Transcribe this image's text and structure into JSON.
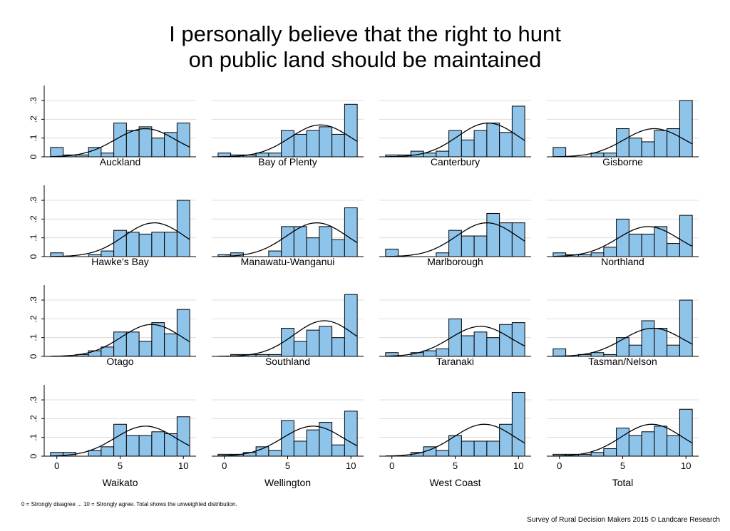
{
  "title": {
    "line1": "I personally believe that the right to hunt",
    "line2": "on public land should be maintained"
  },
  "footnote": "0 = Strongly disagree ... 10 = Strongly agree. Total shows the unweighted distribution.",
  "credit": "Survey of Rural Decision Makers 2015 © Landcare Research",
  "colors": {
    "bar_fill": "#8ec3ea",
    "bar_stroke": "#000000",
    "curve": "#000000",
    "grid": "#dcdcdc"
  },
  "chart_data": {
    "type": "bar",
    "layout": "4x4 small multiples, histogram with fitted normal curve per panel",
    "categories": [
      0,
      1,
      2,
      3,
      4,
      5,
      6,
      7,
      8,
      9,
      10
    ],
    "xlim": [
      -1,
      11
    ],
    "ylim": [
      0,
      0.38
    ],
    "x_ticks": [
      "0",
      "5",
      "10"
    ],
    "y_ticks": [
      "0",
      ".1",
      ".2",
      ".3"
    ],
    "grid": "horizontal",
    "panels": [
      {
        "label": "Auckland",
        "values": [
          0.05,
          0.01,
          0.01,
          0.05,
          0.02,
          0.18,
          0.14,
          0.16,
          0.1,
          0.13,
          0.18
        ],
        "fit": {
          "mean": 7.0,
          "peak": 0.15
        }
      },
      {
        "label": "Bay of Plenty",
        "values": [
          0.02,
          0.01,
          0.01,
          0.02,
          0.02,
          0.14,
          0.12,
          0.14,
          0.16,
          0.12,
          0.28
        ],
        "fit": {
          "mean": 7.6,
          "peak": 0.17
        }
      },
      {
        "label": "Canterbury",
        "values": [
          0.01,
          0.01,
          0.03,
          0.02,
          0.03,
          0.14,
          0.09,
          0.14,
          0.18,
          0.13,
          0.27
        ],
        "fit": {
          "mean": 7.6,
          "peak": 0.18
        }
      },
      {
        "label": "Gisborne",
        "values": [
          0.05,
          0.0,
          0.0,
          0.02,
          0.02,
          0.15,
          0.1,
          0.08,
          0.14,
          0.15,
          0.3
        ],
        "fit": {
          "mean": 7.5,
          "peak": 0.15
        }
      },
      {
        "label": "Hawke's Bay",
        "values": [
          0.02,
          0.0,
          0.0,
          0.01,
          0.03,
          0.14,
          0.13,
          0.12,
          0.13,
          0.13,
          0.3
        ],
        "fit": {
          "mean": 7.7,
          "peak": 0.18
        }
      },
      {
        "label": "Manawatu-Wanganui",
        "values": [
          0.01,
          0.02,
          0.0,
          0.0,
          0.03,
          0.16,
          0.16,
          0.1,
          0.16,
          0.09,
          0.26
        ],
        "fit": {
          "mean": 7.3,
          "peak": 0.18
        }
      },
      {
        "label": "Marlborough",
        "values": [
          0.04,
          0.0,
          0.0,
          0.0,
          0.02,
          0.14,
          0.11,
          0.11,
          0.23,
          0.18,
          0.18
        ],
        "fit": {
          "mean": 7.5,
          "peak": 0.18
        }
      },
      {
        "label": "Northland",
        "values": [
          0.02,
          0.01,
          0.01,
          0.02,
          0.05,
          0.2,
          0.12,
          0.12,
          0.16,
          0.07,
          0.22
        ],
        "fit": {
          "mean": 7.0,
          "peak": 0.16
        }
      },
      {
        "label": "Otago",
        "values": [
          0.0,
          0.0,
          0.01,
          0.03,
          0.05,
          0.13,
          0.13,
          0.08,
          0.18,
          0.12,
          0.25
        ],
        "fit": {
          "mean": 7.5,
          "peak": 0.17
        }
      },
      {
        "label": "Southland",
        "values": [
          0.0,
          0.01,
          0.01,
          0.01,
          0.01,
          0.15,
          0.08,
          0.14,
          0.16,
          0.1,
          0.33
        ],
        "fit": {
          "mean": 7.9,
          "peak": 0.19
        }
      },
      {
        "label": "Taranaki",
        "values": [
          0.02,
          0.0,
          0.02,
          0.03,
          0.04,
          0.2,
          0.11,
          0.13,
          0.1,
          0.17,
          0.18
        ],
        "fit": {
          "mean": 7.0,
          "peak": 0.16
        }
      },
      {
        "label": "Tasman/Nelson",
        "values": [
          0.04,
          0.0,
          0.01,
          0.02,
          0.01,
          0.1,
          0.06,
          0.19,
          0.15,
          0.06,
          0.3
        ],
        "fit": {
          "mean": 7.4,
          "peak": 0.15
        }
      },
      {
        "label": "Waikato",
        "values": [
          0.02,
          0.02,
          0.0,
          0.03,
          0.05,
          0.17,
          0.11,
          0.11,
          0.13,
          0.12,
          0.21
        ],
        "fit": {
          "mean": 7.0,
          "peak": 0.16
        }
      },
      {
        "label": "Wellington",
        "values": [
          0.01,
          0.01,
          0.02,
          0.05,
          0.03,
          0.19,
          0.08,
          0.14,
          0.18,
          0.06,
          0.24
        ],
        "fit": {
          "mean": 7.0,
          "peak": 0.16
        }
      },
      {
        "label": "West Coast",
        "values": [
          0.0,
          0.0,
          0.02,
          0.05,
          0.03,
          0.11,
          0.08,
          0.08,
          0.08,
          0.17,
          0.34
        ],
        "fit": {
          "mean": 7.3,
          "peak": 0.17
        }
      },
      {
        "label": "Total",
        "values": [
          0.01,
          0.01,
          0.01,
          0.02,
          0.04,
          0.15,
          0.11,
          0.13,
          0.16,
          0.11,
          0.25
        ],
        "fit": {
          "mean": 7.3,
          "peak": 0.17
        }
      }
    ]
  }
}
